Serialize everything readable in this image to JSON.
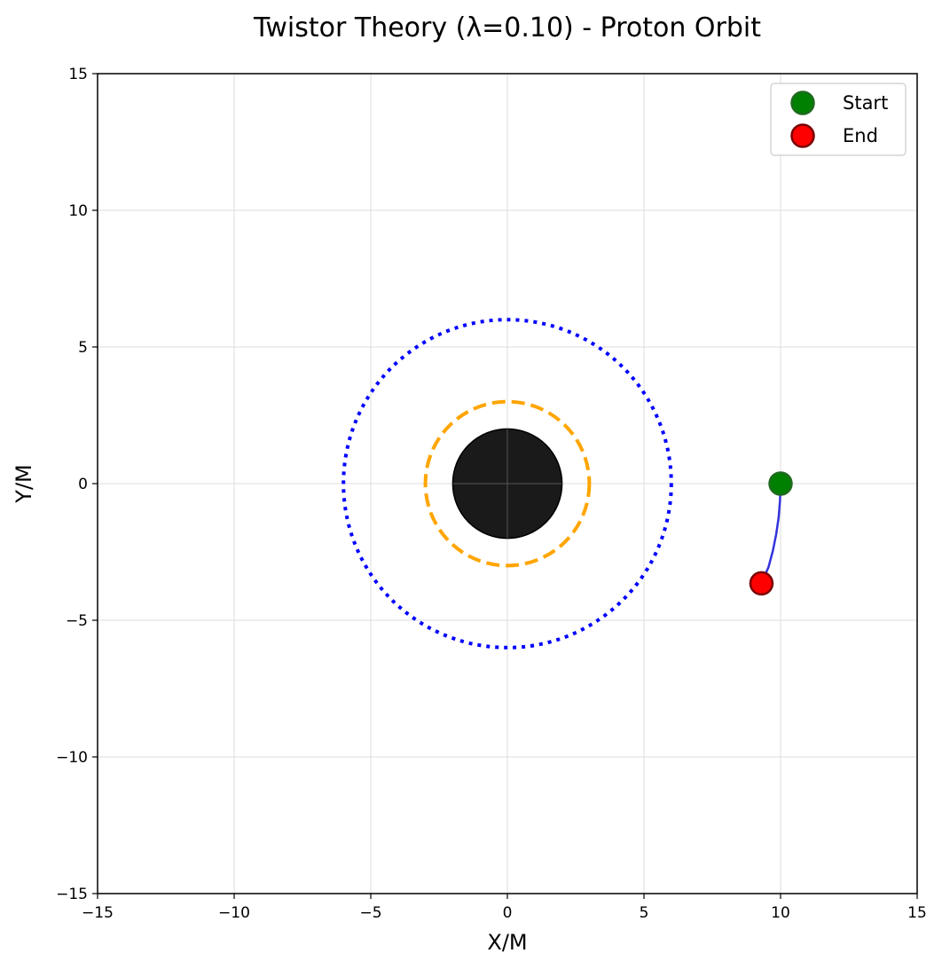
{
  "chart_data": {
    "type": "scatter",
    "title": "Twistor Theory (λ=0.10) - Proton Orbit",
    "xlabel": "X/M",
    "ylabel": "Y/M",
    "xlim": [
      -15,
      15
    ],
    "ylim": [
      -15,
      15
    ],
    "xticks": [
      -15,
      -10,
      -5,
      0,
      5,
      10,
      15
    ],
    "yticks": [
      -15,
      -10,
      -5,
      0,
      5,
      10,
      15
    ],
    "xtick_labels": [
      "−15",
      "−10",
      "−5",
      "0",
      "5",
      "10",
      "15"
    ],
    "ytick_labels": [
      "−15",
      "−10",
      "−5",
      "0",
      "5",
      "10",
      "15"
    ],
    "grid": true,
    "legend_position": "top-right",
    "black_hole": {
      "center": [
        0,
        0
      ],
      "radius": 2.0,
      "color": "#1a1a1a"
    },
    "circles": [
      {
        "radius": 3.0,
        "color": "#ffa500",
        "style": "dashed"
      },
      {
        "radius": 6.0,
        "color": "#0000ff",
        "style": "dotted"
      }
    ],
    "trajectory": {
      "color": "#3333dd",
      "x": [
        10.0,
        9.98,
        9.93,
        9.84,
        9.72,
        9.56,
        9.3
      ],
      "y": [
        0.0,
        -0.62,
        -1.24,
        -1.85,
        -2.45,
        -3.05,
        -3.65
      ]
    },
    "series": [
      {
        "name": "Start",
        "x": [
          10.0
        ],
        "y": [
          0.0
        ],
        "color": "#008000",
        "edge": "#1f6a1f"
      },
      {
        "name": "End",
        "x": [
          9.3
        ],
        "y": [
          -3.65
        ],
        "color": "#ff0000",
        "edge": "#7a0000"
      }
    ]
  }
}
